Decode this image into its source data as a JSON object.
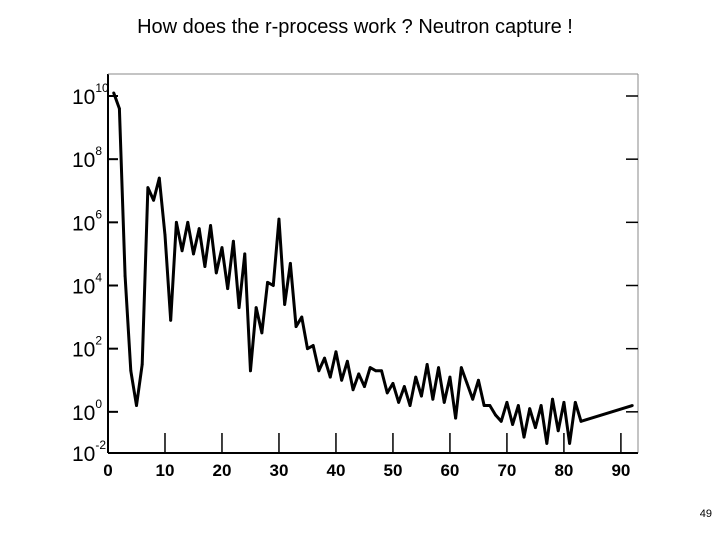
{
  "slide": {
    "title": "How does the r-process work ? Neutron capture !",
    "page_number": "49"
  },
  "chart_data": {
    "type": "line",
    "title": "How does the r-process work ? Neutron capture !",
    "xlabel": "",
    "ylabel": "",
    "xlim": [
      0,
      93
    ],
    "ylim": [
      -2,
      10
    ],
    "y_scale": "log",
    "x_ticks": [
      "0",
      "10",
      "20",
      "30",
      "40",
      "50",
      "60",
      "70",
      "80",
      "90"
    ],
    "y_ticks": [
      {
        "base": "10",
        "exp": "10",
        "value": 10
      },
      {
        "base": "10",
        "exp": "8",
        "value": 8
      },
      {
        "base": "10",
        "exp": "6",
        "value": 6
      },
      {
        "base": "10",
        "exp": "4",
        "value": 4
      },
      {
        "base": "10",
        "exp": "2",
        "value": 2
      },
      {
        "base": "10",
        "exp": "0",
        "value": 0
      },
      {
        "base": "10",
        "exp": "-2",
        "value": -2
      }
    ],
    "grid": false,
    "line_color": "#000000",
    "series": [
      {
        "x": [
          1,
          2,
          3,
          4,
          5,
          6,
          7,
          8,
          9,
          10,
          11,
          12,
          13,
          14,
          15,
          16,
          17,
          18,
          19,
          20,
          21,
          22,
          23,
          24,
          25,
          26,
          27,
          28,
          29,
          30,
          31,
          32,
          33,
          34,
          35,
          36,
          37,
          38,
          39,
          40,
          41,
          42,
          43,
          44,
          45,
          46,
          47,
          48,
          49,
          50,
          51,
          52,
          53,
          54,
          55,
          56,
          57,
          58,
          59,
          60,
          61,
          62,
          63,
          64,
          65,
          66,
          67,
          68,
          69,
          70,
          71,
          72,
          73,
          74,
          75,
          76,
          77,
          78,
          79,
          80,
          81,
          82,
          83,
          92
        ],
        "y": [
          10.1,
          9.6,
          4.3,
          1.3,
          0.2,
          1.5,
          7.1,
          6.7,
          7.4,
          5.6,
          2.9,
          6.0,
          5.1,
          6.0,
          5.0,
          5.8,
          4.6,
          5.9,
          4.4,
          5.2,
          3.9,
          5.4,
          3.3,
          5.0,
          1.3,
          3.3,
          2.5,
          4.1,
          4.0,
          6.1,
          3.4,
          4.7,
          2.7,
          3.0,
          2.0,
          2.1,
          1.3,
          1.7,
          1.1,
          1.9,
          1.0,
          1.6,
          0.7,
          1.2,
          0.8,
          1.4,
          1.3,
          1.3,
          0.6,
          0.9,
          0.3,
          0.8,
          0.2,
          1.1,
          0.5,
          1.5,
          0.4,
          1.4,
          0.3,
          1.1,
          -0.2,
          1.4,
          0.9,
          0.4,
          1.0,
          0.2,
          0.2,
          -0.1,
          -0.3,
          0.3,
          -0.4,
          0.2,
          -0.8,
          0.1,
          -0.5,
          0.2,
          -1.0,
          0.4,
          -0.6,
          0.3,
          -1.0,
          0.3,
          -0.3,
          0.2
        ]
      }
    ]
  }
}
